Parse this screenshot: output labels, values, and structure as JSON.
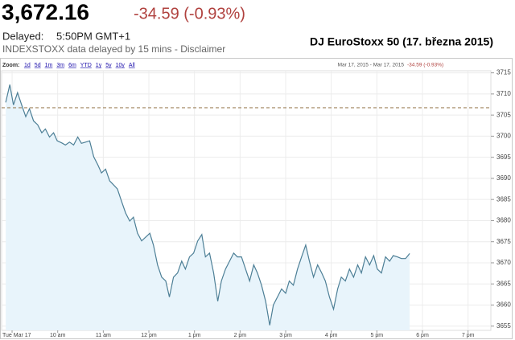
{
  "quote": {
    "price": "3,672.16",
    "change": "-34.59 (-0.93%)",
    "delayed_label": "Delayed:",
    "delayed_time": "5:50PM GMT+1",
    "source_note": "INDEXSTOXX data delayed by 15 mins - Disclaimer"
  },
  "zoom": {
    "label": "Zoom:",
    "options": [
      "1d",
      "5d",
      "1m",
      "3m",
      "6m",
      "YTD",
      "1y",
      "5y",
      "10y",
      "All"
    ]
  },
  "chart_data": {
    "type": "line",
    "title": "DJ EuroStoxx 50 (17. března 2015)",
    "range_text": "Mar 17, 2015 - Mar 17, 2015",
    "range_change": "-34.59 (-0.93%)",
    "color": "#4d7f96",
    "fill": "#e8f4fb",
    "grid": true,
    "previous_close": 3706.75,
    "previous_close_color": "#8c6d3f",
    "xlim": [
      8.77,
      19.5
    ],
    "ylim": [
      3654,
      3715.5
    ],
    "xticks": [
      {
        "value": 9,
        "label": "Tue Mar 17"
      },
      {
        "value": 10,
        "label": "10 am"
      },
      {
        "value": 11,
        "label": "11 am"
      },
      {
        "value": 12,
        "label": "12 pm"
      },
      {
        "value": 13,
        "label": "1 pm"
      },
      {
        "value": 14,
        "label": "2 pm"
      },
      {
        "value": 15,
        "label": "3 pm"
      },
      {
        "value": 16,
        "label": "4 pm"
      },
      {
        "value": 17,
        "label": "5 pm"
      },
      {
        "value": 18,
        "label": "6 pm"
      },
      {
        "value": 19,
        "label": "7 pm"
      }
    ],
    "yticks": [
      3655,
      3660,
      3665,
      3670,
      3675,
      3680,
      3685,
      3690,
      3695,
      3700,
      3705,
      3710,
      3715
    ],
    "x": [
      8.86,
      8.95,
      9.03,
      9.12,
      9.21,
      9.3,
      9.38,
      9.47,
      9.56,
      9.65,
      9.73,
      9.82,
      9.91,
      9.99,
      10.09,
      10.17,
      10.26,
      10.35,
      10.44,
      10.52,
      10.61,
      10.7,
      10.79,
      10.88,
      10.96,
      11.05,
      11.14,
      11.23,
      11.31,
      11.4,
      11.49,
      11.58,
      11.66,
      11.75,
      11.84,
      11.93,
      12.02,
      12.1,
      12.19,
      12.28,
      12.37,
      12.45,
      12.54,
      12.63,
      12.72,
      12.8,
      12.89,
      12.98,
      13.07,
      13.16,
      13.24,
      13.33,
      13.42,
      13.51,
      13.59,
      13.68,
      13.77,
      13.86,
      13.94,
      14.03,
      14.12,
      14.21,
      14.3,
      14.38,
      14.47,
      14.56,
      14.65,
      14.73,
      14.82,
      14.91,
      15.0,
      15.08,
      15.17,
      15.26,
      15.35,
      15.44,
      15.52,
      15.61,
      15.7,
      15.79,
      15.87,
      15.96,
      16.05,
      16.14,
      16.22,
      16.31,
      16.4,
      16.49,
      16.58,
      16.66,
      16.75,
      16.84,
      16.93,
      17.01,
      17.1,
      17.19,
      17.28,
      17.36,
      17.45,
      17.54,
      17.63,
      17.72
    ],
    "values": [
      3708,
      3712.2,
      3707.4,
      3710.3,
      3707.4,
      3704.6,
      3706.5,
      3703.6,
      3702.7,
      3700.8,
      3701.7,
      3699.8,
      3700.8,
      3698.9,
      3698.4,
      3697.9,
      3698.6,
      3697.9,
      3699.8,
      3698.3,
      3698.6,
      3698.9,
      3695.1,
      3693.2,
      3691.3,
      3692.2,
      3689.4,
      3688.4,
      3687.5,
      3684.6,
      3681.8,
      3679.9,
      3680.8,
      3677.0,
      3675.2,
      3676.1,
      3677.0,
      3674.2,
      3669.5,
      3666.6,
      3665.7,
      3661.9,
      3666.6,
      3667.6,
      3670.4,
      3668.5,
      3671.4,
      3672.3,
      3675.2,
      3676.7,
      3671.4,
      3672.3,
      3667.6,
      3660.9,
      3665.7,
      3668.5,
      3670.4,
      3672.3,
      3671.4,
      3671.4,
      3668.5,
      3665.7,
      3669.5,
      3667.6,
      3664.7,
      3660.9,
      3655.2,
      3660.0,
      3661.9,
      3663.8,
      3662.8,
      3665.7,
      3664.7,
      3668.5,
      3671.4,
      3674.2,
      3670.4,
      3666.6,
      3669.5,
      3667.6,
      3665.7,
      3661.9,
      3659.0,
      3663.8,
      3666.6,
      3665.7,
      3668.5,
      3666.6,
      3669.5,
      3667.6,
      3671.4,
      3669.5,
      3671.7,
      3668.5,
      3667.6,
      3671.4,
      3670.4,
      3671.7,
      3671.4,
      3671.0,
      3671.0,
      3672.2
    ]
  }
}
